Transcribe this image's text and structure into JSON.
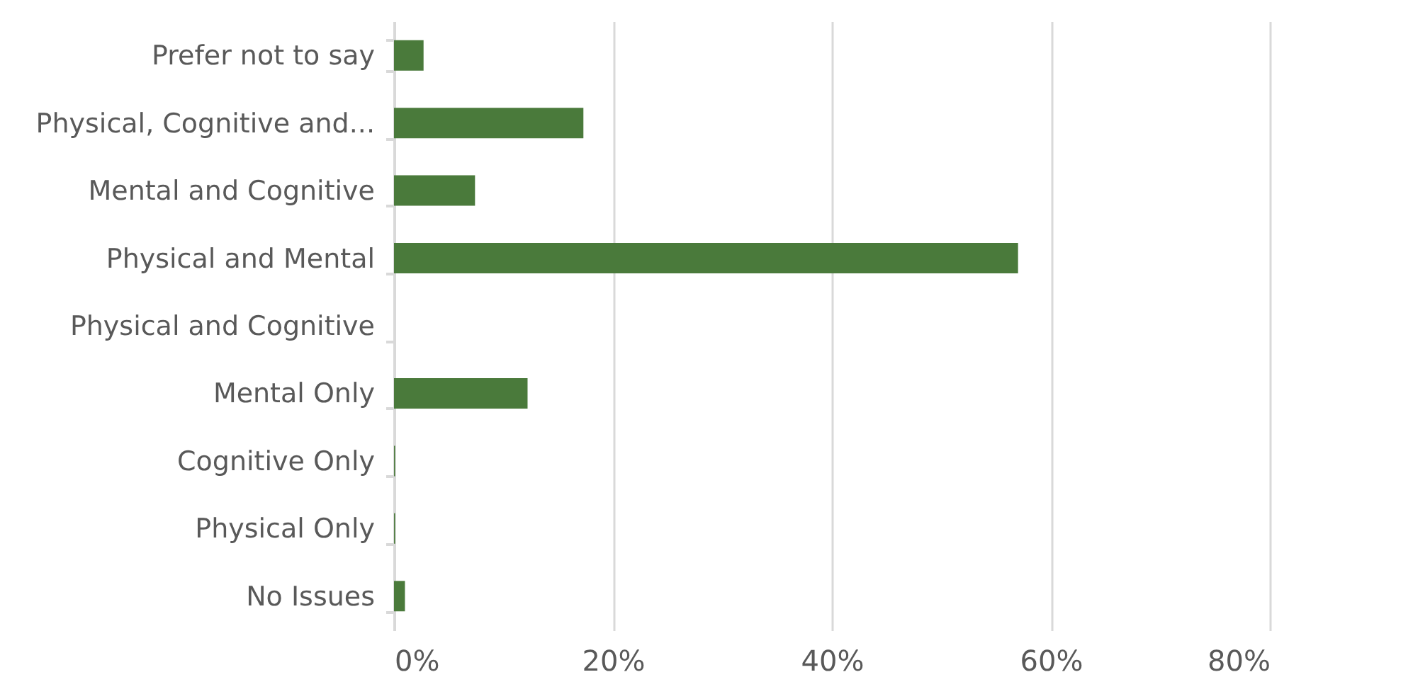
{
  "chart_data": {
    "type": "bar",
    "orientation": "horizontal",
    "categories": [
      "Prefer not to say",
      "Physical, Cognitive  and...",
      "Mental and Cognitive ",
      "Physical and Mental",
      "Physical and Cognitive ",
      "Mental Only",
      "Cognitive  Only",
      "Physical Only",
      "No Issues"
    ],
    "values": [
      2.7,
      17.3,
      7.4,
      57.0,
      0,
      12.2,
      0.1,
      0.1,
      1.0
    ],
    "color": "#4a7a3b",
    "xlim": [
      0,
      80
    ],
    "xticks": [
      {
        "value": 0,
        "label": "0%"
      },
      {
        "value": 20,
        "label": "20%"
      },
      {
        "value": 40,
        "label": "40%"
      },
      {
        "value": 60,
        "label": "60%"
      },
      {
        "value": 80,
        "label": "80%"
      }
    ],
    "grid": "x"
  }
}
